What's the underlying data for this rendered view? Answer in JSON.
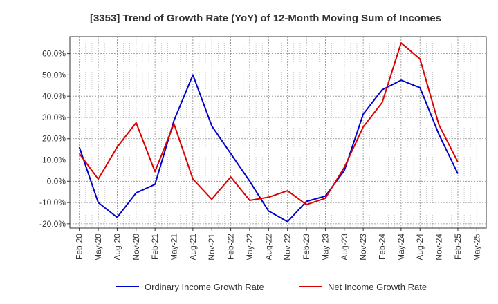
{
  "chart_data": {
    "type": "line",
    "title": "[3353]  Trend of Growth Rate (YoY) of 12-Month Moving Sum of Incomes",
    "xlabel": "",
    "ylabel": "",
    "x": [
      "Feb-20",
      "May-20",
      "Aug-20",
      "Nov-20",
      "Feb-21",
      "May-21",
      "Aug-21",
      "Nov-21",
      "Feb-22",
      "May-22",
      "Aug-22",
      "Nov-22",
      "Feb-23",
      "May-23",
      "Aug-23",
      "Nov-23",
      "Feb-24",
      "May-24",
      "Aug-24",
      "Nov-24",
      "Feb-25",
      "May-25"
    ],
    "ylim": [
      -22,
      68
    ],
    "yticks": [
      -20,
      -10,
      0,
      10,
      20,
      30,
      40,
      50,
      60
    ],
    "ytick_labels": [
      "-20.0%",
      "-10.0%",
      "0.0%",
      "10.0%",
      "20.0%",
      "30.0%",
      "40.0%",
      "50.0%",
      "60.0%"
    ],
    "grid": true,
    "legend_position": "bottom",
    "series": [
      {
        "name": "Ordinary Income Growth Rate",
        "color": "#0000cc",
        "values": [
          16.0,
          -10.0,
          -17.0,
          -5.5,
          -1.5,
          28.5,
          50.0,
          26.0,
          13.0,
          0.0,
          -14.0,
          -19.0,
          -9.5,
          -7.0,
          5.0,
          31.5,
          43.0,
          47.5,
          44.0,
          22.0,
          3.5,
          null
        ]
      },
      {
        "name": "Net Income Growth Rate",
        "color": "#dd0000",
        "values": [
          13.0,
          1.0,
          16.0,
          27.5,
          4.5,
          27.0,
          1.0,
          -8.5,
          2.0,
          -9.0,
          -7.5,
          -4.5,
          -11.0,
          -8.0,
          6.5,
          25.5,
          37.0,
          65.0,
          57.5,
          26.5,
          9.0,
          null
        ]
      }
    ]
  }
}
